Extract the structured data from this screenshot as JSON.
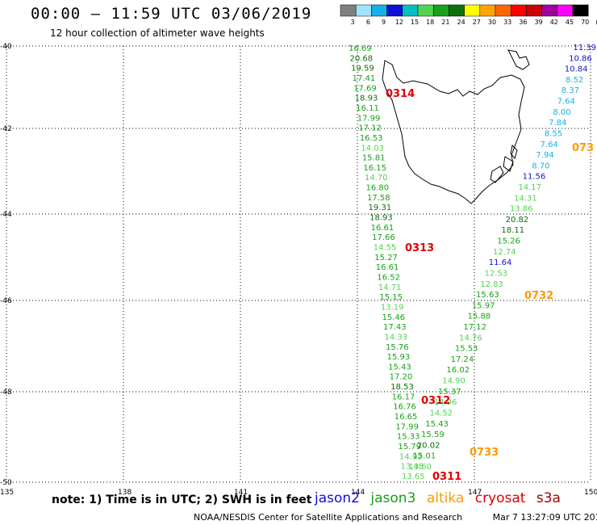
{
  "header": {
    "title": "00:00 – 11:59 UTC 03/06/2019",
    "subtitle": "12 hour collection of altimeter wave heights"
  },
  "legend": {
    "ticks": [
      "3",
      "6",
      "9",
      "12",
      "15",
      "18",
      "21",
      "24",
      "27",
      "30",
      "33",
      "36",
      "39",
      "42",
      "45",
      "70",
      "(ft)"
    ],
    "colors": [
      "#808080",
      "#9fe4ff",
      "#17b0e8",
      "#1010d8",
      "#00c0c0",
      "#52d452",
      "#17a217",
      "#0e6f0e",
      "#ffff00",
      "#ffa500",
      "#ff6600",
      "#ff0000",
      "#cc0000",
      "#a000a0",
      "#ff00ff",
      "#000000"
    ]
  },
  "axes": {
    "lat_labels": [
      "-40",
      "-42",
      "-44",
      "-46",
      "-48",
      "-50"
    ],
    "lon_labels": [
      "135",
      "138",
      "141",
      "144",
      "147",
      "150"
    ]
  },
  "tracks": [
    {
      "mission": "jason3",
      "values": [
        "16.69",
        "20.68",
        "19.59",
        "17.41",
        "17.69",
        "18.93",
        "16.11",
        "17.99",
        "17.12",
        "16.53",
        "14.03",
        "15.81",
        "16.15",
        "14.70",
        "16.80",
        "17.58",
        "19.31",
        "18.93",
        "16.61",
        "17.66",
        "14.55",
        "15.27",
        "16.61",
        "16.52",
        "14.71",
        "15.15",
        "13.19",
        "15.46",
        "17.43",
        "14.33",
        "15.76",
        "15.93",
        "15.43",
        "17.20",
        "18.53",
        "16.17",
        "16.76",
        "16.65",
        "17.99",
        "15.33",
        "15.79",
        "14.92",
        "13.48",
        "13.65"
      ]
    },
    {
      "mission": "jason2",
      "values": [
        "11.39",
        "10.86",
        "10.84",
        "8.52",
        "8.37",
        "7.64",
        "8.00",
        "7.84",
        "8.55",
        "7.64",
        "7.94",
        "8.70",
        "11.56",
        "14.17",
        "14.31",
        "13.86",
        "20.82",
        "18.11",
        "15.26",
        "12.74",
        "11.64",
        "12.53",
        "12.83",
        "15.63",
        "15.97",
        "15.88",
        "17.12",
        "14.76",
        "15.53",
        "17.24",
        "16.02",
        "14.90",
        "15.37",
        "14.96",
        "14.52",
        "15.43",
        "15.59",
        "20.02",
        "15.01",
        "13.60"
      ]
    }
  ],
  "passes": [
    {
      "label": "0314",
      "mission": "cryosat"
    },
    {
      "label": "0313",
      "mission": "cryosat"
    },
    {
      "label": "0312",
      "mission": "cryosat"
    },
    {
      "label": "0311",
      "mission": "cryosat"
    },
    {
      "label": "073",
      "mission": "altika"
    },
    {
      "label": "0732",
      "mission": "altika"
    },
    {
      "label": "0733",
      "mission": "altika"
    }
  ],
  "footer": {
    "note": "note: 1) Time is in UTC; 2) SWH is in feet",
    "missions": [
      {
        "name": "jason2",
        "color": "#1010d8"
      },
      {
        "name": "jason3",
        "color": "#17a217"
      },
      {
        "name": "altika",
        "color": "#ff9900"
      },
      {
        "name": "cryosat",
        "color": "#e00000"
      },
      {
        "name": "s3a",
        "color": "#a00000"
      }
    ],
    "credit_org": "NOAA/NESDIS Center for Satellite Applications and Research",
    "credit_time": "Mar  7 13:27:09 UTC 2019"
  }
}
